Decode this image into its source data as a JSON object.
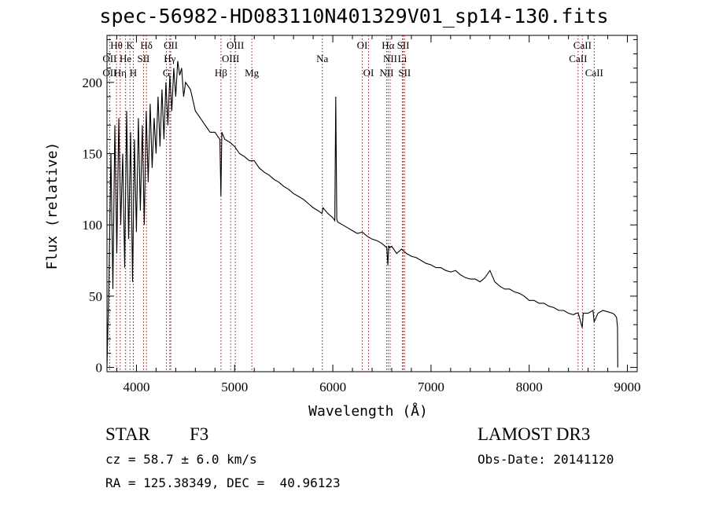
{
  "chart_data": {
    "type": "line",
    "title": "spec-56982-HD083110N401329V01_sp14-130.fits",
    "xlabel": "Wavelength (Å)",
    "ylabel": "Flux (relative)",
    "xlim": [
      3700,
      9100
    ],
    "ylim": [
      -3,
      233
    ],
    "xticks": [
      4000,
      5000,
      6000,
      7000,
      8000,
      9000
    ],
    "yticks": [
      0,
      50,
      100,
      150,
      200
    ],
    "grid": false,
    "series": [
      {
        "x": [
          3700,
          3720,
          3740,
          3760,
          3780,
          3800,
          3820,
          3840,
          3860,
          3880,
          3900,
          3920,
          3940,
          3960,
          3980,
          4000,
          4020,
          4040,
          4060,
          4080,
          4100,
          4120,
          4140,
          4160,
          4180,
          4200,
          4220,
          4240,
          4260,
          4280,
          4300,
          4320,
          4340,
          4360,
          4380,
          4400,
          4420,
          4440,
          4460,
          4480,
          4500,
          4550,
          4600,
          4650,
          4700,
          4750,
          4800,
          4850,
          4860,
          4870,
          4900,
          4950,
          5000,
          5050,
          5100,
          5150,
          5200,
          5250,
          5300,
          5350,
          5400,
          5450,
          5500,
          5550,
          5600,
          5650,
          5700,
          5750,
          5800,
          5850,
          5890,
          5900,
          5950,
          6000,
          6020,
          6030,
          6040,
          6050,
          6100,
          6150,
          6200,
          6250,
          6300,
          6350,
          6400,
          6450,
          6500,
          6550,
          6560,
          6570,
          6580,
          6600,
          6650,
          6700,
          6750,
          6800,
          6850,
          6900,
          6950,
          7000,
          7050,
          7100,
          7150,
          7200,
          7250,
          7300,
          7350,
          7400,
          7450,
          7500,
          7550,
          7600,
          7650,
          7700,
          7750,
          7800,
          7850,
          7900,
          7950,
          8000,
          8050,
          8100,
          8150,
          8200,
          8250,
          8300,
          8350,
          8400,
          8450,
          8480,
          8500,
          8540,
          8550,
          8600,
          8650,
          8662,
          8700,
          8750,
          8800,
          8850,
          8870,
          8890,
          8900,
          8902
        ],
        "y": [
          0,
          60,
          150,
          55,
          170,
          80,
          175,
          100,
          150,
          70,
          180,
          90,
          165,
          60,
          160,
          95,
          175,
          110,
          170,
          100,
          180,
          130,
          185,
          140,
          175,
          150,
          190,
          155,
          195,
          160,
          200,
          170,
          205,
          180,
          210,
          190,
          215,
          205,
          210,
          190,
          200,
          195,
          180,
          175,
          170,
          165,
          165,
          160,
          120,
          165,
          160,
          158,
          155,
          150,
          148,
          145,
          145,
          140,
          137,
          135,
          132,
          130,
          127,
          125,
          122,
          120,
          118,
          115,
          112,
          110,
          108,
          112,
          108,
          105,
          103,
          190,
          104,
          102,
          100,
          98,
          96,
          94,
          95,
          92,
          90,
          89,
          87,
          84,
          72,
          85,
          84,
          85,
          80,
          83,
          80,
          78,
          77,
          75,
          73,
          72,
          70,
          70,
          68,
          67,
          68,
          65,
          63,
          62,
          62,
          60,
          63,
          68,
          60,
          57,
          55,
          55,
          53,
          52,
          50,
          47,
          47,
          45,
          45,
          43,
          42,
          40,
          40,
          38,
          37,
          38,
          38,
          28,
          38,
          38,
          40,
          32,
          38,
          40,
          39,
          38,
          37,
          35,
          28,
          0
        ]
      }
    ],
    "lines_top": [
      {
        "label": "Hθ",
        "x": 3797
      },
      {
        "label": "K",
        "x": 3934
      },
      {
        "label": "Hδ",
        "x": 4102
      },
      {
        "label": "OII",
        "x": 4350
      },
      {
        "label": "OIII",
        "x": 5007
      },
      {
        "label": "OI",
        "x": 6300
      },
      {
        "label": "Hα",
        "x": 6563
      },
      {
        "label": "SII",
        "x": 6717
      },
      {
        "label": "CaII",
        "x": 8542
      }
    ],
    "lines_mid": [
      {
        "label": "OII",
        "x": 3727
      },
      {
        "label": "He",
        "x": 3889
      },
      {
        "label": "SII",
        "x": 4072
      },
      {
        "label": "Hγ",
        "x": 4340
      },
      {
        "label": "OIII",
        "x": 4959
      },
      {
        "label": "Na",
        "x": 5893
      },
      {
        "label": "NII",
        "x": 6584
      },
      {
        "label": "Li",
        "x": 6708
      },
      {
        "label": "CaII",
        "x": 8498
      }
    ],
    "lines_low": [
      {
        "label": "OII",
        "x": 3727
      },
      {
        "label": "Hη",
        "x": 3835
      },
      {
        "label": "H",
        "x": 3968
      },
      {
        "label": "G",
        "x": 4305
      },
      {
        "label": "Hβ",
        "x": 4861
      },
      {
        "label": "Mg",
        "x": 5175
      },
      {
        "label": "OI",
        "x": 6364
      },
      {
        "label": "NII",
        "x": 6548
      },
      {
        "label": "SII",
        "x": 6731
      },
      {
        "label": "CaII",
        "x": 8662
      }
    ]
  },
  "info": {
    "object_type": "STAR",
    "subclass": "F3",
    "survey": "LAMOST DR3",
    "cz": "cz = 58.7 ± 6.0 km/s",
    "obs_date": "Obs-Date: 20141120",
    "coords": "RA = 125.38349, DEC =  40.96123"
  }
}
